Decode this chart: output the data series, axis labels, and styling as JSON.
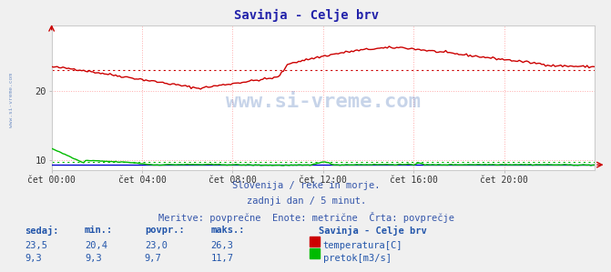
{
  "title": "Savinja - Celje brv",
  "title_color": "#2222aa",
  "bg_color": "#f0f0f0",
  "plot_bg_color": "#ffffff",
  "grid_color_x": "#ffaaaa",
  "grid_color_y": "#ffaaaa",
  "x_ticks": [
    0,
    4,
    8,
    12,
    16,
    20
  ],
  "x_tick_labels": [
    "čet 00:00",
    "čet 04:00",
    "čet 08:00",
    "čet 12:00",
    "čet 16:00",
    "čet 20:00"
  ],
  "y_ticks": [
    10,
    20
  ],
  "ylim": [
    8.5,
    29.5
  ],
  "xlim": [
    0,
    24
  ],
  "temp_color": "#cc0000",
  "flow_color": "#00bb00",
  "nivel_color": "#0000cc",
  "avg_temp_color": "#cc0000",
  "avg_flow_color": "#00bb00",
  "avg_temp": 23.0,
  "avg_flow": 9.7,
  "watermark_text": "www.si-vreme.com",
  "watermark_color": "#2255aa",
  "watermark_alpha": 0.25,
  "subtitle1": "Slovenija / reke in morje.",
  "subtitle2": "zadnji dan / 5 minut.",
  "subtitle3": "Meritve: povprečne  Enote: metrične  Črta: povprečje",
  "subtitle_color": "#3355aa",
  "legend_title": "Savinja - Celje brv",
  "legend_items": [
    "temperatura[C]",
    "pretok[m3/s]"
  ],
  "legend_colors": [
    "#cc0000",
    "#00bb00"
  ],
  "table_headers": [
    "sedaj:",
    "min.:",
    "povpr.:",
    "maks.:"
  ],
  "table_values": [
    [
      "23,5",
      "20,4",
      "23,0",
      "26,3"
    ],
    [
      "9,3",
      "9,3",
      "9,7",
      "11,7"
    ]
  ],
  "table_color": "#2255aa",
  "arrow_color": "#cc0000",
  "spine_color": "#cccccc"
}
